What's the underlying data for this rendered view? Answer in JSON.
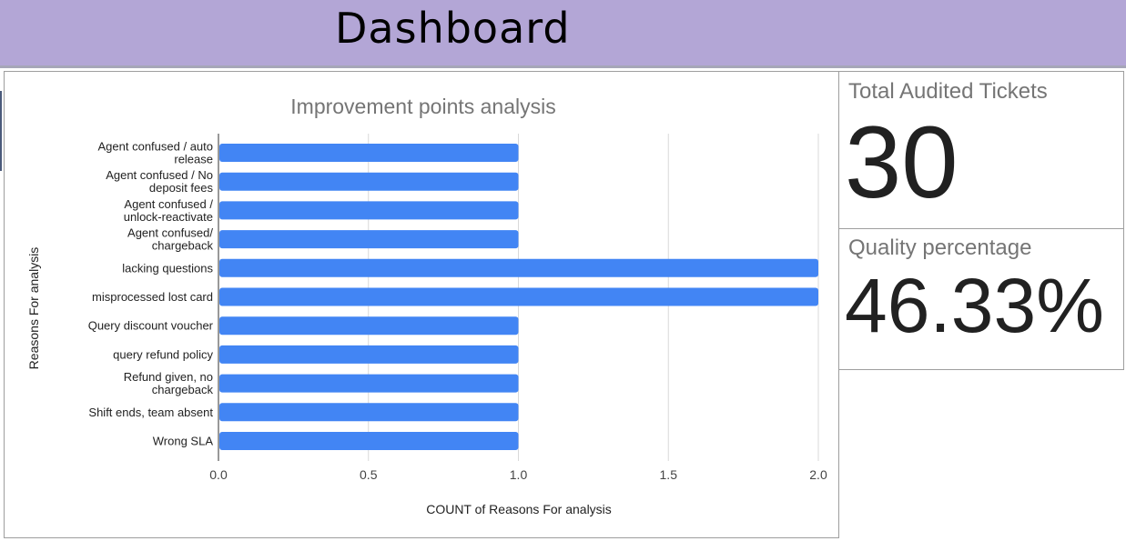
{
  "header": {
    "title": "Dashboard"
  },
  "kpis": {
    "total_audited": {
      "label": "Total Audited Tickets",
      "value": "30"
    },
    "quality": {
      "label": "Quality percentage",
      "value": "46.33%"
    }
  },
  "chart_data": {
    "type": "bar",
    "orientation": "horizontal",
    "title": "Improvement points analysis",
    "xlabel": "COUNT of Reasons For analysis",
    "ylabel": "Reasons For analysis",
    "xlim": [
      0,
      2
    ],
    "x_ticks": [
      "0.0",
      "0.5",
      "1.0",
      "1.5",
      "2.0"
    ],
    "grid": true,
    "bar_color": "#4285f4",
    "categories": [
      [
        "Agent confused / auto",
        "release"
      ],
      [
        "Agent confused / No",
        "deposit fees"
      ],
      [
        "Agent confused /",
        "unlock-reactivate"
      ],
      [
        "Agent confused/",
        "chargeback"
      ],
      [
        "lacking questions"
      ],
      [
        "misprocessed lost card"
      ],
      [
        "Query discount voucher"
      ],
      [
        "query refund policy"
      ],
      [
        "Refund given, no",
        "chargeback"
      ],
      [
        "Shift ends, team absent"
      ],
      [
        "Wrong SLA"
      ]
    ],
    "values": [
      1,
      1,
      1,
      1,
      2,
      2,
      1,
      1,
      1,
      1,
      1
    ]
  }
}
